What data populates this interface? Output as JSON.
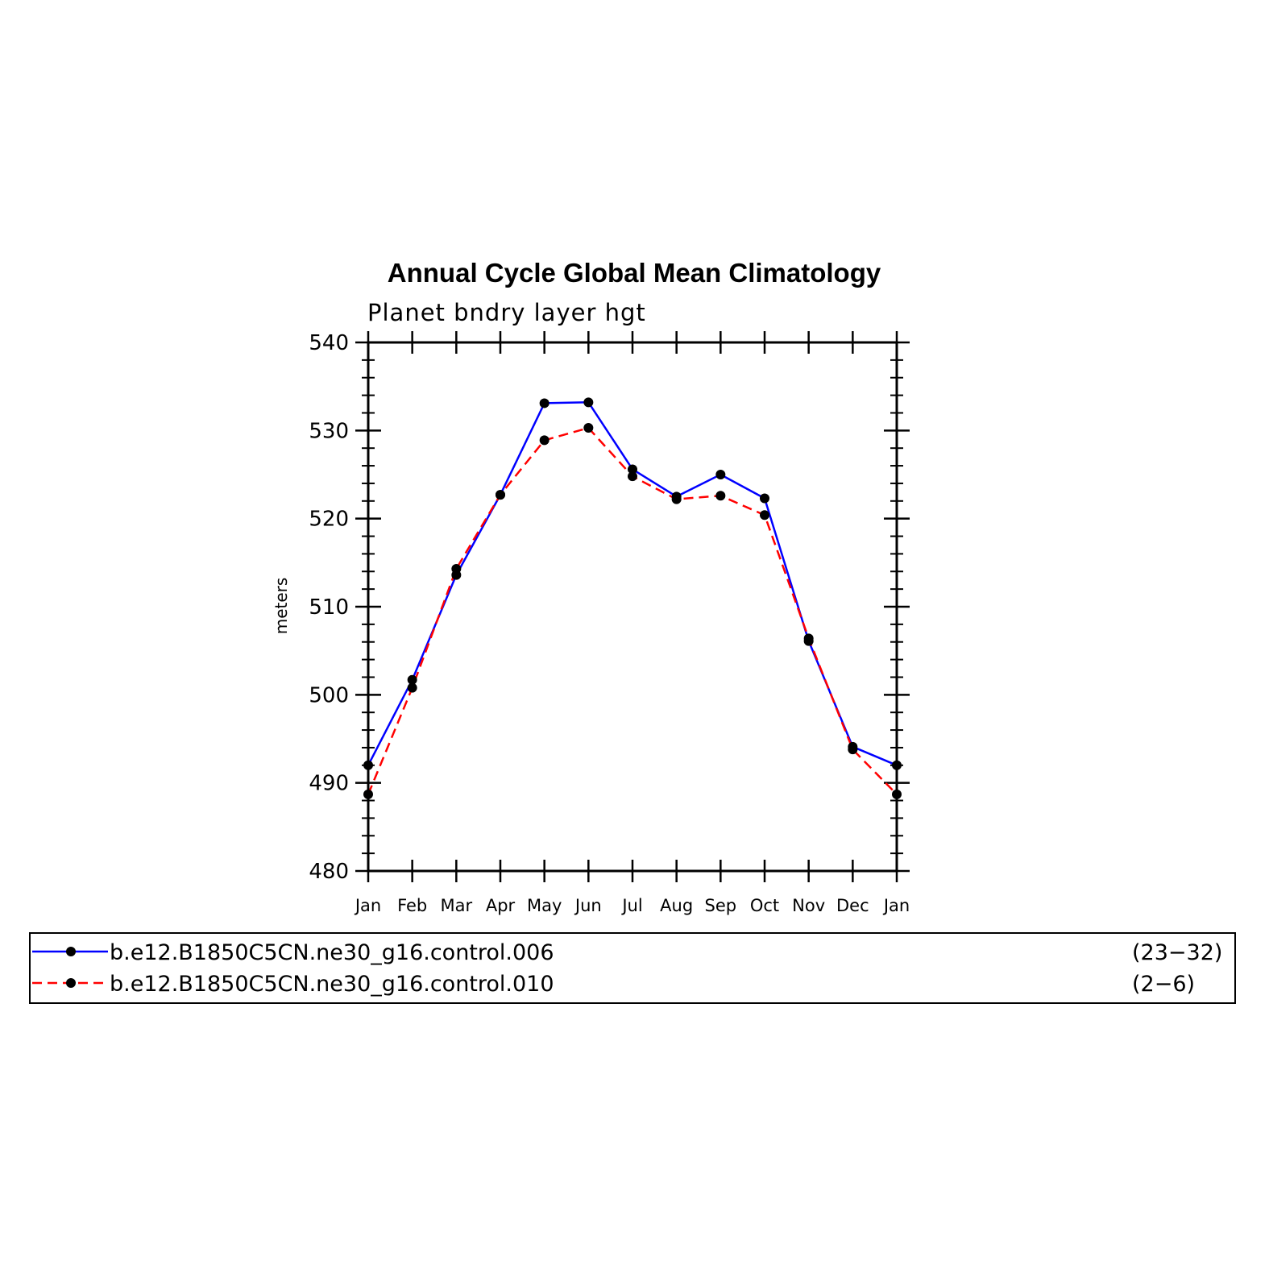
{
  "chart_data": {
    "type": "line",
    "title": "Annual Cycle Global Mean Climatology",
    "subtitle": "Planet bndry layer hgt",
    "ylabel": "meters",
    "categories": [
      "Jan",
      "Feb",
      "Mar",
      "Apr",
      "May",
      "Jun",
      "Jul",
      "Aug",
      "Sep",
      "Oct",
      "Nov",
      "Dec",
      "Jan"
    ],
    "yticks": [
      "480",
      "490",
      "500",
      "510",
      "520",
      "530",
      "540"
    ],
    "ylim": [
      480,
      540
    ],
    "series": [
      {
        "name": "b.e12.B1850C5CN.ne30_g16.control.006",
        "years": "(23−32)",
        "color": "#0000ff",
        "dash": "solid",
        "values": [
          492.0,
          501.7,
          513.6,
          522.7,
          533.1,
          533.2,
          525.6,
          522.5,
          525.0,
          522.3,
          506.1,
          494.1,
          492.0
        ]
      },
      {
        "name": "b.e12.B1850C5CN.ne30_g16.control.010",
        "years": "(2−6)",
        "color": "#ff0000",
        "dash": "dashed",
        "values": [
          488.7,
          500.8,
          514.3,
          522.7,
          528.9,
          530.3,
          524.8,
          522.2,
          522.6,
          520.4,
          506.4,
          493.8,
          488.7
        ]
      }
    ],
    "grid": false,
    "legend_position": "bottom"
  }
}
